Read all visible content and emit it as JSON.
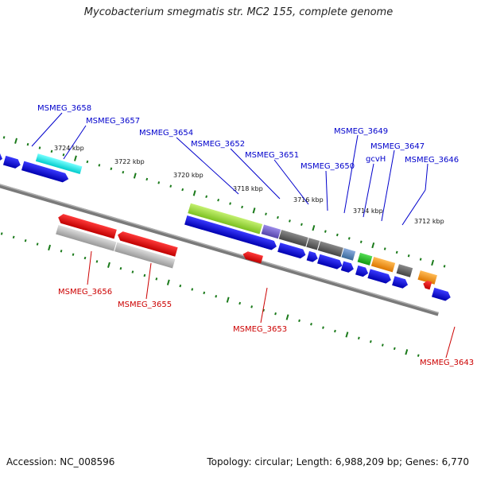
{
  "title": "Mycobacterium smegmatis str. MC2 155, complete genome",
  "footer": {
    "accession": "Accession: NC_008596",
    "stats": "Topology: circular; Length: 6,988,209 bp; Genes: 6,770"
  },
  "tick_labels": [
    {
      "id": "t3724",
      "text": "3724 kbp"
    },
    {
      "id": "t3722",
      "text": "3722 kbp"
    },
    {
      "id": "t3720",
      "text": "3720 kbp"
    },
    {
      "id": "t3718",
      "text": "3718 kbp"
    },
    {
      "id": "t3716",
      "text": "3716 kbp"
    },
    {
      "id": "t3714",
      "text": "3714 kbp"
    },
    {
      "id": "t3712",
      "text": "3712 kbp"
    }
  ],
  "forward_labels": [
    {
      "id": "MSMEG_3658",
      "text": "MSMEG_3658"
    },
    {
      "id": "MSMEG_3657",
      "text": "MSMEG_3657"
    },
    {
      "id": "MSMEG_3654",
      "text": "MSMEG_3654"
    },
    {
      "id": "MSMEG_3652",
      "text": "MSMEG_3652"
    },
    {
      "id": "MSMEG_3651",
      "text": "MSMEG_3651"
    },
    {
      "id": "MSMEG_3650",
      "text": "MSMEG_3650"
    },
    {
      "id": "MSMEG_3649",
      "text": "MSMEG_3649"
    },
    {
      "id": "MSMEG_3647",
      "text": "MSMEG_3647"
    },
    {
      "id": "gcvH",
      "text": "gcvH"
    },
    {
      "id": "MSMEG_3646",
      "text": "MSMEG_3646"
    }
  ],
  "reverse_labels": [
    {
      "id": "MSMEG_3656",
      "text": "MSMEG_3656"
    },
    {
      "id": "MSMEG_3655",
      "text": "MSMEG_3655"
    },
    {
      "id": "MSMEG_3653",
      "text": "MSMEG_3653"
    },
    {
      "id": "MSMEG_3643",
      "text": "MSMEG_3643"
    }
  ],
  "colors": {
    "forward_label": "#0000cc",
    "reverse_label": "#cc0000",
    "cds_forward": "#1010dd",
    "cds_reverse": "#ee1111",
    "tick": "#1a7a1a",
    "backbone": "#808080",
    "cyan_feature": "#22e0e0",
    "lime_feature": "#99dd33",
    "purple_feature": "#7766cc",
    "dark_gray_feature": "#666666",
    "steel_blue_feature": "#5588bb",
    "green_feature": "#22bb22",
    "orange_feature": "#ff9911",
    "light_gray_feature": "#bbbbbb"
  }
}
